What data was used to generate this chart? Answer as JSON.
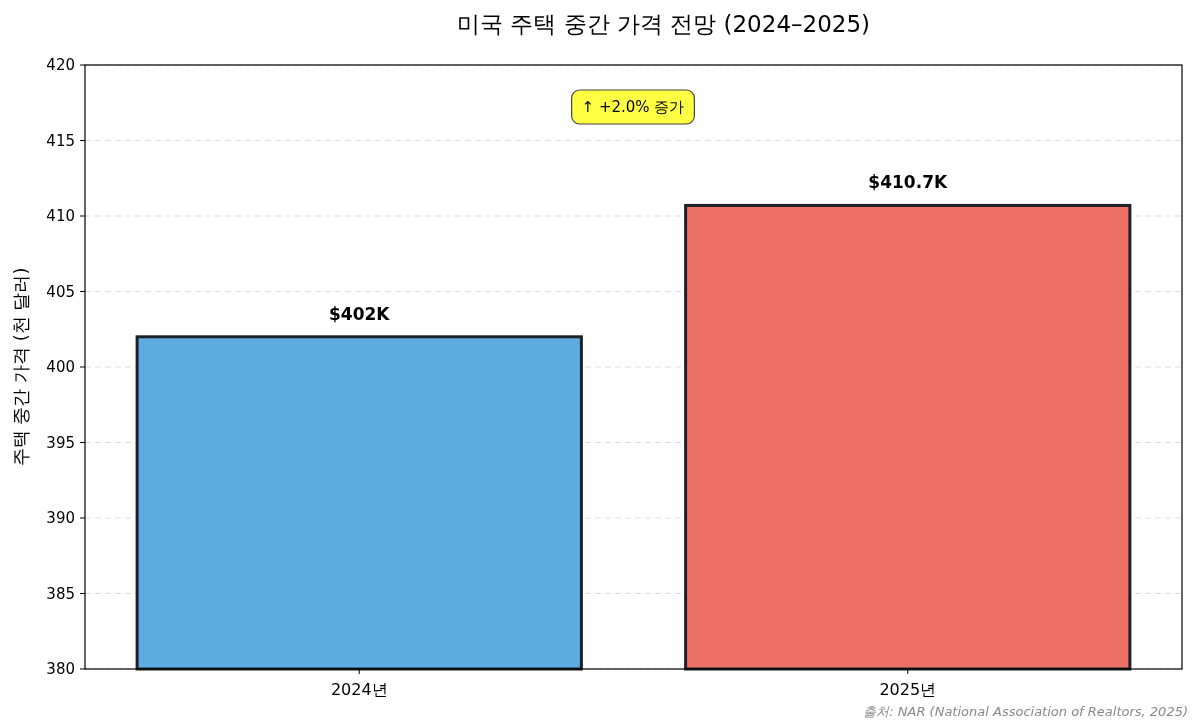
{
  "chart_data": {
    "type": "bar",
    "title": "미국 주택 중간 가격 전망 (2024–2025)",
    "ylabel": "주택 중간 가격 (천 달러)",
    "categories": [
      "2024년",
      "2025년"
    ],
    "values": [
      402,
      410.7
    ],
    "colors": [
      "#5dade2",
      "#ec7063"
    ],
    "value_labels": [
      "$402K",
      "$410.7K"
    ],
    "ylim": [
      380,
      420
    ],
    "yticks": [
      380,
      385,
      390,
      395,
      400,
      405,
      410,
      415,
      420
    ],
    "grid": "y",
    "annotations": [
      "↑ +2.0% 증가",
      "출처: NAR (National Association of Realtors, 2025)"
    ]
  }
}
